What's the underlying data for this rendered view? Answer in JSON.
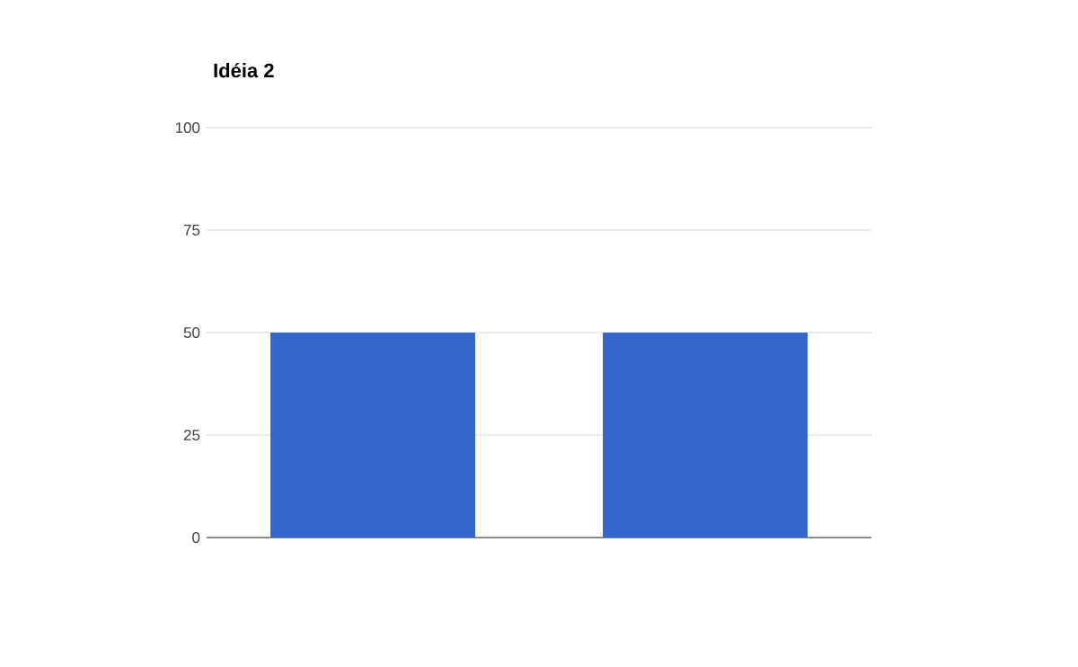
{
  "chart_data": {
    "type": "bar",
    "title": "Idéia 2",
    "categories": [
      null,
      null
    ],
    "values": [
      50,
      50
    ],
    "color": "#3366cc",
    "ylim": [
      0,
      100
    ],
    "yticks": [
      0,
      25,
      50,
      75,
      100
    ],
    "grid": "y"
  }
}
